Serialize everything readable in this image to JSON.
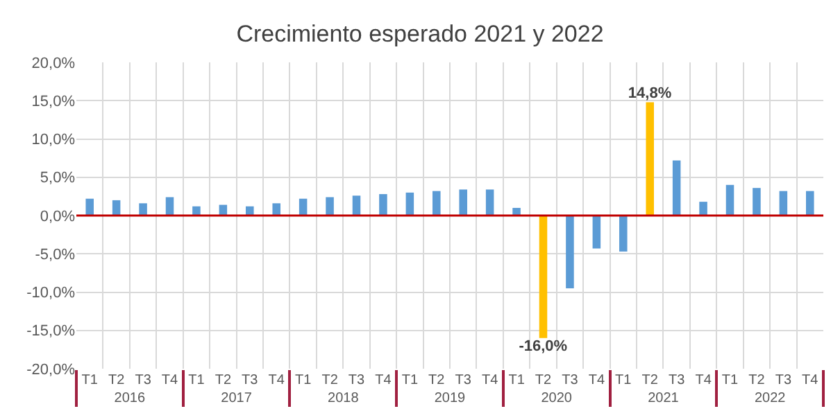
{
  "chart_data": {
    "type": "bar",
    "title": "Crecimiento esperado 2021 y 2022",
    "categories": [
      "T1",
      "T2",
      "T3",
      "T4",
      "T1",
      "T2",
      "T3",
      "T4",
      "T1",
      "T2",
      "T3",
      "T4",
      "T1",
      "T2",
      "T3",
      "T4",
      "T1",
      "T2",
      "T3",
      "T4",
      "T1",
      "T2",
      "T3",
      "T4",
      "T1",
      "T2",
      "T3",
      "T4"
    ],
    "annotations": [
      "2016",
      "2017",
      "2018",
      "2019",
      "2020",
      "2021",
      "2022"
    ],
    "values": [
      2.2,
      2.0,
      1.6,
      2.4,
      1.2,
      1.4,
      1.2,
      1.6,
      2.2,
      2.4,
      2.6,
      2.8,
      3.0,
      3.2,
      3.4,
      3.4,
      1.0,
      -16.0,
      -9.5,
      -4.3,
      -4.7,
      14.8,
      7.2,
      1.8,
      4.0,
      3.6,
      3.2,
      3.2
    ],
    "colors": [
      "#5b9bd5",
      "#5b9bd5",
      "#5b9bd5",
      "#5b9bd5",
      "#5b9bd5",
      "#5b9bd5",
      "#5b9bd5",
      "#5b9bd5",
      "#5b9bd5",
      "#5b9bd5",
      "#5b9bd5",
      "#5b9bd5",
      "#5b9bd5",
      "#5b9bd5",
      "#5b9bd5",
      "#5b9bd5",
      "#5b9bd5",
      "#ffc000",
      "#5b9bd5",
      "#5b9bd5",
      "#5b9bd5",
      "#ffc000",
      "#5b9bd5",
      "#5b9bd5",
      "#5b9bd5",
      "#5b9bd5",
      "#5b9bd5",
      "#5b9bd5"
    ],
    "value_labels": [
      null,
      null,
      null,
      null,
      null,
      null,
      null,
      null,
      null,
      null,
      null,
      null,
      null,
      null,
      null,
      null,
      null,
      "-16,0%",
      null,
      null,
      null,
      "14,8%",
      null,
      null,
      null,
      null,
      null,
      null
    ],
    "ylim": [
      -20,
      20
    ],
    "yticks": [
      {
        "value": -20,
        "label": "-20,0%"
      },
      {
        "value": -15,
        "label": "-15,0%"
      },
      {
        "value": -10,
        "label": "-10,0%"
      },
      {
        "value": -5,
        "label": "-5,0%"
      },
      {
        "value": 0,
        "label": "0,0%"
      },
      {
        "value": 5,
        "label": "5,0%"
      },
      {
        "value": 10,
        "label": "10,0%"
      },
      {
        "value": 15,
        "label": "15,0%"
      },
      {
        "value": 20,
        "label": "20,0%"
      }
    ],
    "ref_lines": [
      {
        "axis": "y",
        "value": 0,
        "label": null,
        "color": "#c00000"
      }
    ],
    "grid": true,
    "legend": false
  }
}
